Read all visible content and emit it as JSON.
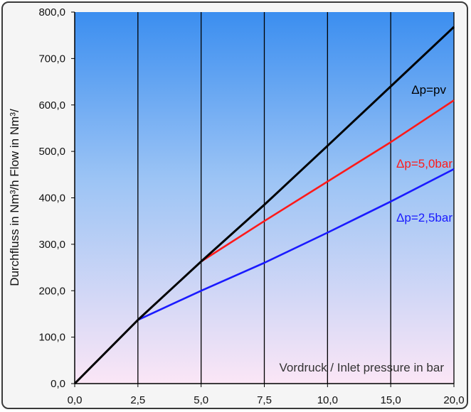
{
  "chart_data": {
    "type": "line",
    "xlabel": "",
    "ylabel": "Durchfluss in Nm³/h  Flow in Nm³/",
    "annotation": "Vordruck / Inlet pressure in bar",
    "x_ticks": [
      "0,0",
      "2,5",
      "5,0",
      "7,5",
      "10,0",
      "15,0",
      "20,0"
    ],
    "x_tick_values": [
      0,
      2.5,
      5,
      7.5,
      10,
      15,
      20
    ],
    "y_ticks": [
      "0,0",
      "100,0",
      "200,0",
      "300,0",
      "400,0",
      "500,0",
      "600,0",
      "700,0",
      "800,0"
    ],
    "y_tick_values": [
      0,
      100,
      200,
      300,
      400,
      500,
      600,
      700,
      800
    ],
    "ylim": [
      0,
      800
    ],
    "x_axis_note": "tick positions evenly spaced (non-linear value spacing)",
    "grid": "vertical lines at each x tick",
    "series": [
      {
        "name": "Δp=pv",
        "color": "#000000",
        "points": [
          [
            0,
            0
          ],
          [
            2.5,
            137
          ],
          [
            5,
            263
          ],
          [
            7.5,
            385
          ],
          [
            10,
            512
          ],
          [
            15,
            640
          ],
          [
            20,
            768
          ]
        ]
      },
      {
        "name": "Δp=5,0bar",
        "color": "#ff1a1a",
        "points": [
          [
            5,
            263
          ],
          [
            7.5,
            350
          ],
          [
            10,
            435
          ],
          [
            15,
            520
          ],
          [
            20,
            610
          ]
        ]
      },
      {
        "name": "Δp=2,5bar",
        "color": "#1a1aff",
        "points": [
          [
            2.5,
            137
          ],
          [
            5,
            200
          ],
          [
            7.5,
            260
          ],
          [
            10,
            325
          ],
          [
            15,
            392
          ],
          [
            20,
            462
          ]
        ]
      }
    ]
  }
}
